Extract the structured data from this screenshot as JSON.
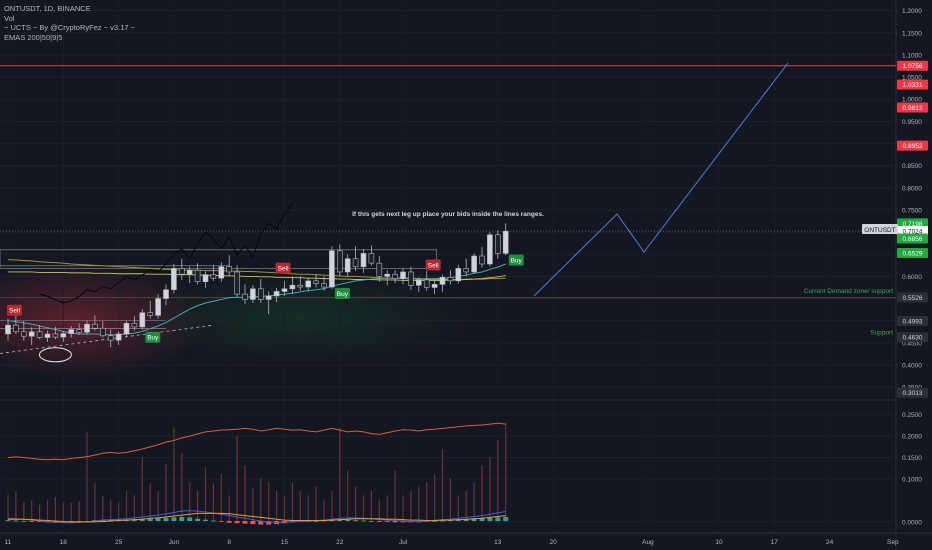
{
  "header": {
    "symbol_line": "ONTUSDT, 1D, BINANCE",
    "lines": [
      "Vol",
      "~ UCTS ~ By @CryptoRyFez ~ v3.17 ~",
      "EMAS 200|50|9|5"
    ]
  },
  "annotation_text": "If this gets next leg up place your bids inside the lines ranges.",
  "symbol_tag": "ONTUSDT",
  "colors": {
    "background": "#131722",
    "up": "#d1d4dc",
    "down": "#1e222d",
    "red_line": "#f23645",
    "green_label": "#1fab3b",
    "sell_bg": "#b22833",
    "buy_bg": "#1e8e3e",
    "projection": "#4c7dd6"
  },
  "chart_data": {
    "type": "candlestick",
    "price_axis": {
      "ticks": [
        "1.2000",
        "1.1500",
        "1.1000",
        "1.0500",
        "1.0000",
        "0.9500",
        "0.9000",
        "0.8500",
        "0.8000",
        "0.7500",
        "0.7000",
        "0.6500",
        "0.6000",
        "0.5500",
        "0.5000",
        "0.4500",
        "0.4000",
        "0.3500"
      ],
      "range": [
        0.33,
        1.215
      ]
    },
    "volume_axis": {
      "ticks": [
        "0.2500",
        "0.2000",
        "0.1500",
        "0.1000",
        "0.0000"
      ],
      "range": [
        -0.012,
        0.275
      ]
    },
    "time_axis": {
      "ticks": [
        {
          "label": "11",
          "day": 0
        },
        {
          "label": "18",
          "day": 7
        },
        {
          "label": "25",
          "day": 14
        },
        {
          "label": "Jun",
          "day": 21
        },
        {
          "label": "8",
          "day": 28
        },
        {
          "label": "15",
          "day": 35
        },
        {
          "label": "22",
          "day": 42
        },
        {
          "label": "Jul",
          "day": 50
        },
        {
          "label": "13",
          "day": 62
        },
        {
          "label": "20",
          "day": 69
        },
        {
          "label": "Aug",
          "day": 81
        },
        {
          "label": "10",
          "day": 90
        },
        {
          "label": "17",
          "day": 97
        },
        {
          "label": "24",
          "day": 104
        },
        {
          "label": "Sep",
          "day": 112
        }
      ]
    },
    "price_labels": [
      {
        "value": "1.0756",
        "price": 1.0756,
        "kind": "red"
      },
      {
        "value": "1.0331",
        "price": 1.0331,
        "kind": "red"
      },
      {
        "value": "0.9813",
        "price": 0.9813,
        "kind": "red"
      },
      {
        "value": "0.8953",
        "price": 0.8953,
        "kind": "red"
      },
      {
        "value": "0.7198",
        "price": 0.7198,
        "kind": "green"
      },
      {
        "value": "0.7024",
        "price": 0.7024,
        "kind": "white"
      },
      {
        "value": "0.6856",
        "price": 0.6856,
        "kind": "green"
      },
      {
        "value": "0.6529",
        "price": 0.6529,
        "kind": "green"
      },
      {
        "value": "0.5526",
        "price": 0.5526,
        "kind": "dark"
      },
      {
        "value": "0.4993",
        "price": 0.4993,
        "kind": "dark"
      },
      {
        "value": "0.4630",
        "price": 0.463,
        "kind": "dark"
      },
      {
        "value": "0.3013",
        "price": 0.3013,
        "kind": "dark"
      }
    ],
    "levels": [
      {
        "price": 1.0756,
        "style": "red"
      },
      {
        "price": 0.5526,
        "style": "dim"
      },
      {
        "price": 0.7024,
        "style": "dotted"
      }
    ],
    "zone_labels": [
      {
        "text": "Current Demand zone/ support",
        "price": 0.5626
      },
      {
        "text": "Support",
        "price": 0.4693
      }
    ],
    "signals": [
      {
        "text": "Sell",
        "type": "sell",
        "day": 0,
        "price": 0.518
      },
      {
        "text": "Buy",
        "type": "buy",
        "day": 17,
        "price": 0.457
      },
      {
        "text": "Sell",
        "type": "sell",
        "day": 34,
        "price": 0.613
      },
      {
        "text": "Buy",
        "type": "buy",
        "day": 41,
        "price": 0.556
      },
      {
        "text": "Sell",
        "type": "sell",
        "day": 53,
        "price": 0.62
      },
      {
        "text": "Buy",
        "type": "buy",
        "day": 63,
        "price": 0.631
      }
    ],
    "candles": [
      {
        "o": 0.47,
        "h": 0.505,
        "l": 0.455,
        "c": 0.49
      },
      {
        "o": 0.49,
        "h": 0.52,
        "l": 0.47,
        "c": 0.475
      },
      {
        "o": 0.475,
        "h": 0.5,
        "l": 0.455,
        "c": 0.465
      },
      {
        "o": 0.465,
        "h": 0.485,
        "l": 0.445,
        "c": 0.475
      },
      {
        "o": 0.475,
        "h": 0.49,
        "l": 0.458,
        "c": 0.462
      },
      {
        "o": 0.462,
        "h": 0.478,
        "l": 0.452,
        "c": 0.47
      },
      {
        "o": 0.47,
        "h": 0.486,
        "l": 0.458,
        "c": 0.463
      },
      {
        "o": 0.463,
        "h": 0.477,
        "l": 0.452,
        "c": 0.471
      },
      {
        "o": 0.471,
        "h": 0.488,
        "l": 0.462,
        "c": 0.48
      },
      {
        "o": 0.48,
        "h": 0.494,
        "l": 0.468,
        "c": 0.474
      },
      {
        "o": 0.474,
        "h": 0.5,
        "l": 0.468,
        "c": 0.492
      },
      {
        "o": 0.492,
        "h": 0.512,
        "l": 0.478,
        "c": 0.483
      },
      {
        "o": 0.483,
        "h": 0.5,
        "l": 0.462,
        "c": 0.466
      },
      {
        "o": 0.466,
        "h": 0.48,
        "l": 0.44,
        "c": 0.456
      },
      {
        "o": 0.456,
        "h": 0.476,
        "l": 0.445,
        "c": 0.47
      },
      {
        "o": 0.47,
        "h": 0.5,
        "l": 0.462,
        "c": 0.494
      },
      {
        "o": 0.494,
        "h": 0.51,
        "l": 0.478,
        "c": 0.486
      },
      {
        "o": 0.486,
        "h": 0.526,
        "l": 0.48,
        "c": 0.518
      },
      {
        "o": 0.518,
        "h": 0.545,
        "l": 0.505,
        "c": 0.512
      },
      {
        "o": 0.512,
        "h": 0.56,
        "l": 0.505,
        "c": 0.55
      },
      {
        "o": 0.55,
        "h": 0.582,
        "l": 0.535,
        "c": 0.57
      },
      {
        "o": 0.57,
        "h": 0.628,
        "l": 0.562,
        "c": 0.618
      },
      {
        "o": 0.618,
        "h": 0.64,
        "l": 0.592,
        "c": 0.605
      },
      {
        "o": 0.605,
        "h": 0.622,
        "l": 0.585,
        "c": 0.614
      },
      {
        "o": 0.614,
        "h": 0.63,
        "l": 0.582,
        "c": 0.588
      },
      {
        "o": 0.588,
        "h": 0.612,
        "l": 0.574,
        "c": 0.604
      },
      {
        "o": 0.604,
        "h": 0.626,
        "l": 0.59,
        "c": 0.596
      },
      {
        "o": 0.596,
        "h": 0.632,
        "l": 0.588,
        "c": 0.622
      },
      {
        "o": 0.622,
        "h": 0.648,
        "l": 0.6,
        "c": 0.61
      },
      {
        "o": 0.61,
        "h": 0.625,
        "l": 0.552,
        "c": 0.56
      },
      {
        "o": 0.56,
        "h": 0.582,
        "l": 0.538,
        "c": 0.548
      },
      {
        "o": 0.548,
        "h": 0.58,
        "l": 0.54,
        "c": 0.572
      },
      {
        "o": 0.572,
        "h": 0.594,
        "l": 0.54,
        "c": 0.548
      },
      {
        "o": 0.548,
        "h": 0.566,
        "l": 0.515,
        "c": 0.556
      },
      {
        "o": 0.556,
        "h": 0.574,
        "l": 0.542,
        "c": 0.566
      },
      {
        "o": 0.566,
        "h": 0.59,
        "l": 0.556,
        "c": 0.572
      },
      {
        "o": 0.572,
        "h": 0.6,
        "l": 0.56,
        "c": 0.58
      },
      {
        "o": 0.58,
        "h": 0.6,
        "l": 0.568,
        "c": 0.576
      },
      {
        "o": 0.576,
        "h": 0.598,
        "l": 0.566,
        "c": 0.59
      },
      {
        "o": 0.59,
        "h": 0.604,
        "l": 0.575,
        "c": 0.584
      },
      {
        "o": 0.584,
        "h": 0.6,
        "l": 0.568,
        "c": 0.576
      },
      {
        "o": 0.576,
        "h": 0.668,
        "l": 0.572,
        "c": 0.658
      },
      {
        "o": 0.658,
        "h": 0.672,
        "l": 0.6,
        "c": 0.61
      },
      {
        "o": 0.61,
        "h": 0.65,
        "l": 0.6,
        "c": 0.64
      },
      {
        "o": 0.64,
        "h": 0.668,
        "l": 0.612,
        "c": 0.622
      },
      {
        "o": 0.622,
        "h": 0.662,
        "l": 0.608,
        "c": 0.652
      },
      {
        "o": 0.652,
        "h": 0.67,
        "l": 0.625,
        "c": 0.63
      },
      {
        "o": 0.63,
        "h": 0.646,
        "l": 0.588,
        "c": 0.6
      },
      {
        "o": 0.6,
        "h": 0.614,
        "l": 0.58,
        "c": 0.605
      },
      {
        "o": 0.605,
        "h": 0.614,
        "l": 0.585,
        "c": 0.595
      },
      {
        "o": 0.595,
        "h": 0.618,
        "l": 0.582,
        "c": 0.61
      },
      {
        "o": 0.61,
        "h": 0.622,
        "l": 0.57,
        "c": 0.58
      },
      {
        "o": 0.58,
        "h": 0.598,
        "l": 0.565,
        "c": 0.592
      },
      {
        "o": 0.592,
        "h": 0.612,
        "l": 0.568,
        "c": 0.575
      },
      {
        "o": 0.575,
        "h": 0.59,
        "l": 0.56,
        "c": 0.582
      },
      {
        "o": 0.582,
        "h": 0.604,
        "l": 0.565,
        "c": 0.598
      },
      {
        "o": 0.598,
        "h": 0.614,
        "l": 0.582,
        "c": 0.59
      },
      {
        "o": 0.59,
        "h": 0.626,
        "l": 0.584,
        "c": 0.618
      },
      {
        "o": 0.618,
        "h": 0.64,
        "l": 0.6,
        "c": 0.61
      },
      {
        "o": 0.61,
        "h": 0.652,
        "l": 0.606,
        "c": 0.646
      },
      {
        "o": 0.646,
        "h": 0.666,
        "l": 0.62,
        "c": 0.628
      },
      {
        "o": 0.628,
        "h": 0.7,
        "l": 0.622,
        "c": 0.694
      },
      {
        "o": 0.694,
        "h": 0.704,
        "l": 0.64,
        "c": 0.652
      },
      {
        "o": 0.652,
        "h": 0.72,
        "l": 0.648,
        "c": 0.702
      }
    ],
    "volume": [
      0.062,
      0.072,
      0.045,
      0.05,
      0.04,
      0.052,
      0.058,
      0.046,
      0.044,
      0.048,
      0.21,
      0.09,
      0.06,
      0.052,
      0.046,
      0.072,
      0.062,
      0.15,
      0.09,
      0.072,
      0.135,
      0.22,
      0.16,
      0.092,
      0.072,
      0.128,
      0.09,
      0.112,
      0.062,
      0.2,
      0.132,
      0.08,
      0.102,
      0.092,
      0.072,
      0.062,
      0.092,
      0.072,
      0.062,
      0.082,
      0.052,
      0.072,
      0.22,
      0.12,
      0.082,
      0.062,
      0.072,
      0.052,
      0.062,
      0.12,
      0.062,
      0.072,
      0.082,
      0.092,
      0.11,
      0.17,
      0.102,
      0.062,
      0.072,
      0.092,
      0.132,
      0.15,
      0.19,
      0.23
    ],
    "volume_ma": [
      0.15,
      0.152,
      0.15,
      0.148,
      0.146,
      0.145,
      0.146,
      0.145,
      0.148,
      0.15,
      0.152,
      0.156,
      0.16,
      0.162,
      0.16,
      0.162,
      0.166,
      0.17,
      0.175,
      0.18,
      0.186,
      0.19,
      0.196,
      0.2,
      0.205,
      0.21,
      0.212,
      0.214,
      0.215,
      0.216,
      0.218,
      0.216,
      0.212,
      0.215,
      0.218,
      0.216,
      0.214,
      0.215,
      0.212,
      0.21,
      0.214,
      0.218,
      0.214,
      0.21,
      0.212,
      0.21,
      0.206,
      0.204,
      0.208,
      0.212,
      0.215,
      0.214,
      0.212,
      0.215,
      0.216,
      0.218,
      0.22,
      0.222,
      0.224,
      0.225,
      0.226,
      0.228,
      0.23,
      0.228
    ],
    "ema200": [
      0.638,
      0.637,
      0.636,
      0.635,
      0.633,
      0.632,
      0.631,
      0.63,
      0.628,
      0.627,
      0.626,
      0.625,
      0.624,
      0.623,
      0.622,
      0.621,
      0.62,
      0.619,
      0.618,
      0.617,
      0.616,
      0.615,
      0.615,
      0.614,
      0.614,
      0.613,
      0.613,
      0.613,
      0.612,
      0.612,
      0.611,
      0.611,
      0.61,
      0.609,
      0.608,
      0.607,
      0.606,
      0.605,
      0.605,
      0.604,
      0.603,
      0.602,
      0.601,
      0.6,
      0.6,
      0.599,
      0.598,
      0.597,
      0.596,
      0.596,
      0.595,
      0.594,
      0.594,
      0.593,
      0.593,
      0.593,
      0.593,
      0.593,
      0.594,
      0.594,
      0.594,
      0.595,
      0.595,
      0.596
    ],
    "ema50": [
      0.61,
      0.61,
      0.61,
      0.61,
      0.609,
      0.609,
      0.609,
      0.609,
      0.608,
      0.608,
      0.608,
      0.607,
      0.607,
      0.607,
      0.606,
      0.606,
      0.606,
      0.606,
      0.605,
      0.605,
      0.605,
      0.604,
      0.604,
      0.604,
      0.603,
      0.603,
      0.602,
      0.602,
      0.601,
      0.601,
      0.6,
      0.6,
      0.599,
      0.599,
      0.598,
      0.598,
      0.597,
      0.597,
      0.596,
      0.596,
      0.595,
      0.595,
      0.594,
      0.594,
      0.593,
      0.593,
      0.593,
      0.592,
      0.592,
      0.592,
      0.591,
      0.591,
      0.591,
      0.591,
      0.591,
      0.591,
      0.592,
      0.592,
      0.593,
      0.594,
      0.595,
      0.597,
      0.599,
      0.602
    ],
    "ema9": [
      0.5,
      0.498,
      0.495,
      0.492,
      0.488,
      0.484,
      0.48,
      0.476,
      0.472,
      0.47,
      0.47,
      0.47,
      0.469,
      0.468,
      0.468,
      0.47,
      0.472,
      0.476,
      0.482,
      0.488,
      0.496,
      0.506,
      0.516,
      0.526,
      0.534,
      0.54,
      0.544,
      0.548,
      0.552,
      0.553,
      0.553,
      0.554,
      0.555,
      0.556,
      0.558,
      0.56,
      0.562,
      0.565,
      0.568,
      0.57,
      0.572,
      0.578,
      0.582,
      0.586,
      0.59,
      0.592,
      0.594,
      0.595,
      0.596,
      0.596,
      0.596,
      0.596,
      0.595,
      0.595,
      0.595,
      0.596,
      0.597,
      0.6,
      0.603,
      0.607,
      0.61,
      0.616,
      0.621,
      0.628
    ],
    "black_overlay": [
      0.56,
      0.555,
      0.548,
      0.54,
      0.545,
      0.555,
      0.57,
      0.565,
      0.578,
      0.572,
      0.586,
      0.6,
      0.592,
      0.603,
      0.615,
      0.61,
      0.628,
      0.65,
      0.662,
      0.64,
      0.672,
      0.7,
      0.684,
      0.662,
      0.69,
      0.648,
      0.67,
      0.642,
      0.695,
      0.72,
      0.708,
      0.74,
      0.765
    ],
    "macd": [
      0.006,
      0.005,
      0.004,
      0.002,
      0.0,
      -0.002,
      -0.003,
      -0.004,
      -0.004,
      -0.003,
      -0.002,
      0.0,
      0.002,
      0.003,
      0.004,
      0.005,
      0.007,
      0.009,
      0.011,
      0.013,
      0.016,
      0.019,
      0.022,
      0.023,
      0.022,
      0.02,
      0.018,
      0.015,
      0.012,
      0.009,
      0.006,
      0.003,
      0.0,
      -0.002,
      -0.003,
      -0.003,
      -0.002,
      -0.001,
      0.0,
      0.001,
      0.002,
      0.004,
      0.006,
      0.007,
      0.007,
      0.006,
      0.005,
      0.003,
      0.002,
      0.001,
      0.0,
      -0.001,
      -0.001,
      0.0,
      0.001,
      0.003,
      0.004,
      0.006,
      0.008,
      0.01,
      0.012,
      0.015,
      0.018,
      0.021
    ],
    "macd_signal": [
      0.004,
      0.004,
      0.004,
      0.003,
      0.002,
      0.001,
      0.0,
      -0.001,
      -0.002,
      -0.002,
      -0.002,
      -0.002,
      -0.001,
      0.0,
      0.001,
      0.002,
      0.003,
      0.004,
      0.006,
      0.007,
      0.009,
      0.011,
      0.013,
      0.015,
      0.017,
      0.017,
      0.017,
      0.017,
      0.016,
      0.014,
      0.012,
      0.01,
      0.008,
      0.006,
      0.004,
      0.002,
      0.001,
      0.001,
      0.001,
      0.001,
      0.001,
      0.002,
      0.003,
      0.004,
      0.005,
      0.005,
      0.005,
      0.005,
      0.004,
      0.004,
      0.003,
      0.002,
      0.002,
      0.001,
      0.001,
      0.002,
      0.002,
      0.003,
      0.004,
      0.005,
      0.006,
      0.008,
      0.01,
      0.012
    ]
  }
}
